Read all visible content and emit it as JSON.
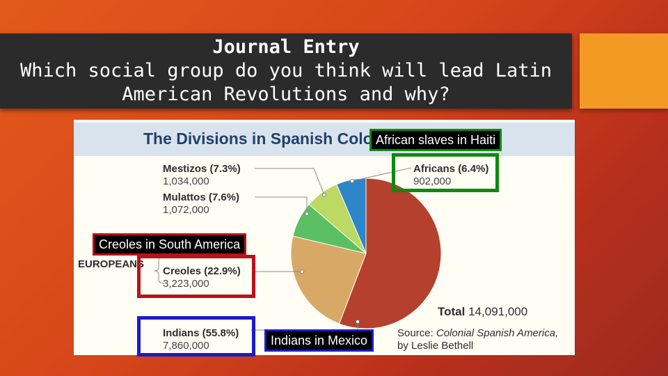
{
  "slide": {
    "title": "Journal Entry",
    "question_line1": "Which social group do you think will lead Latin",
    "question_line2": "American Revolutions and why?"
  },
  "figure": {
    "title": "The Divisions in Spanish Colo",
    "europeans_label": "EUROPEANS",
    "total_label": "Total",
    "total_value": "14,091,000",
    "source_prefix": "Source:",
    "source_title": "Colonial Spanish America,",
    "source_author": "by Leslie Bethell"
  },
  "labels": {
    "mestizos": {
      "name": "Mestizos (7.3%)",
      "count": "1,034,000"
    },
    "mulattos": {
      "name": "Mulattos (7.6%)",
      "count": "1,072,000"
    },
    "africans": {
      "name": "Africans (6.4%)",
      "count": "902,000"
    },
    "creoles": {
      "name": "Creoles (22.9%)",
      "count": "3,223,000"
    },
    "indians": {
      "name": "Indians (55.8%)",
      "count": "7,860,000"
    }
  },
  "callouts": {
    "africans": "African slaves in Haiti",
    "creoles": "Creoles in South America",
    "indians": "Indians in Mexico"
  },
  "colors": {
    "indians": "#b5402e",
    "creoles": "#d8a866",
    "mulattos": "#5bbf63",
    "mestizos": "#bcd964",
    "africans": "#2d86c8",
    "box_green": "#0e8a0e",
    "box_red": "#b8121a",
    "box_blue": "#1c1cc4"
  },
  "chart_data": {
    "type": "pie",
    "title": "The Divisions in Spanish Colo",
    "slices": [
      {
        "label": "Indians",
        "percent": 55.8,
        "value": 7860000
      },
      {
        "label": "Creoles",
        "percent": 22.9,
        "value": 3223000
      },
      {
        "label": "Mulattos",
        "percent": 7.6,
        "value": 1072000
      },
      {
        "label": "Mestizos",
        "percent": 7.3,
        "value": 1034000
      },
      {
        "label": "Africans",
        "percent": 6.4,
        "value": 902000
      }
    ],
    "total": 14091000
  }
}
